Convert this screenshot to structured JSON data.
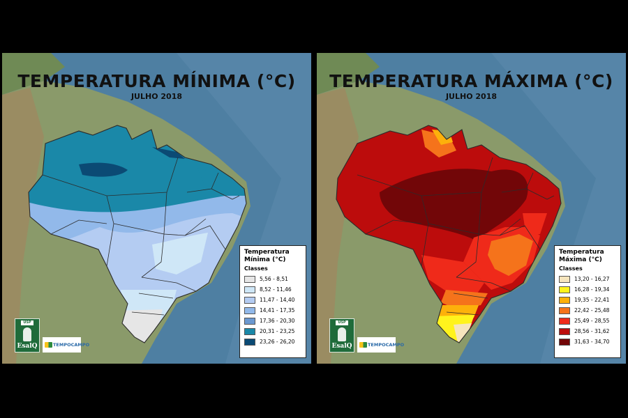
{
  "panels": [
    {
      "title": "TEMPERATURA MÍNIMA (°C)",
      "subtitle": "JULHO 2018",
      "legend": {
        "title": "Temperatura Mínima (°C)",
        "classes_label": "Classes",
        "items": [
          {
            "label": "5,56 - 8,51",
            "color": "#e6e6e6"
          },
          {
            "label": "8,52 - 11,46",
            "color": "#cfe7f7"
          },
          {
            "label": "11,47 - 14,40",
            "color": "#b4ccf2"
          },
          {
            "label": "14,41 - 17,35",
            "color": "#92b9ea"
          },
          {
            "label": "17,36 - 20,30",
            "color": "#6b98d0"
          },
          {
            "label": "20,31 - 23,25",
            "color": "#1a88a8"
          },
          {
            "label": "23,26 - 26,20",
            "color": "#0b4a74"
          }
        ]
      },
      "logos": {
        "esalq_top": "USP",
        "esalq_name": "EsalQ",
        "partner": "TEMPOCAMPO"
      }
    },
    {
      "title": "TEMPERATURA MÁXIMA (°C)",
      "subtitle": "JULHO 2018",
      "legend": {
        "title": "Temperatura Máxima (°C)",
        "classes_label": "Classes",
        "items": [
          {
            "label": "13,20 - 16,27",
            "color": "#f6e5bd"
          },
          {
            "label": "16,28 - 19,34",
            "color": "#fff31d"
          },
          {
            "label": "19,35 - 22,41",
            "color": "#fdb10b"
          },
          {
            "label": "22,42 - 25,48",
            "color": "#f5731b"
          },
          {
            "label": "25,49 - 28,55",
            "color": "#ef2a1a"
          },
          {
            "label": "28,56 - 31,62",
            "color": "#bc0c0c"
          },
          {
            "label": "31,63 - 34,70",
            "color": "#720608"
          }
        ]
      },
      "logos": {
        "esalq_top": "USP",
        "esalq_name": "EsalQ",
        "partner": "TEMPOCAMPO"
      }
    }
  ]
}
